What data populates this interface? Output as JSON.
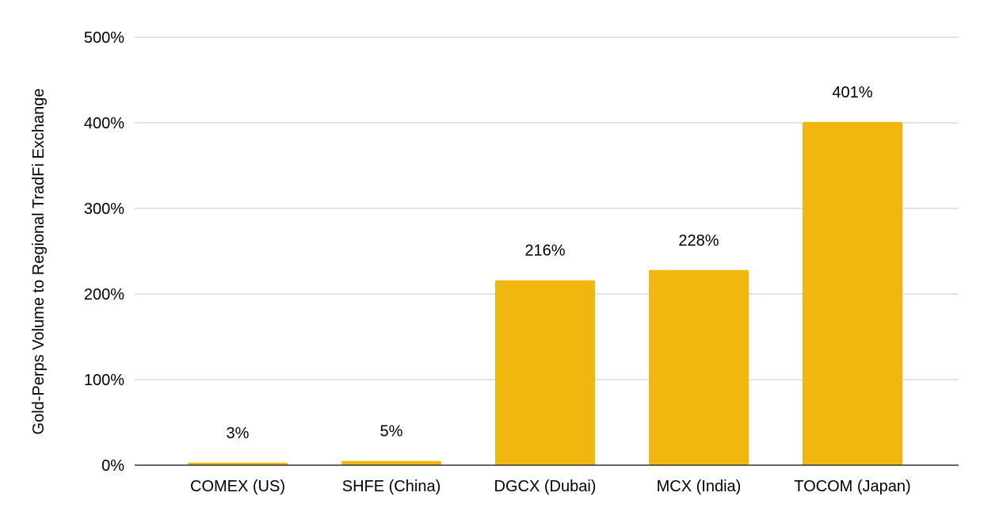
{
  "chart_data": {
    "type": "bar",
    "title": "",
    "xlabel": "",
    "ylabel": "Gold-Perps Volume to Regional TradFi Exchange",
    "categories": [
      "COMEX (US)",
      "SHFE (China)",
      "DGCX (Dubai)",
      "MCX (India)",
      "TOCOM (Japan)"
    ],
    "values": [
      3,
      5,
      216,
      228,
      401
    ],
    "data_labels": [
      "3%",
      "5%",
      "216%",
      "228%",
      "401%"
    ],
    "ylim": [
      0,
      500
    ],
    "yticks": [
      0,
      100,
      200,
      300,
      400,
      500
    ],
    "ytick_labels": [
      "0%",
      "100%",
      "200%",
      "300%",
      "400%",
      "500%"
    ],
    "grid": true,
    "legend": "none",
    "bar_color": "#F1B70E"
  }
}
